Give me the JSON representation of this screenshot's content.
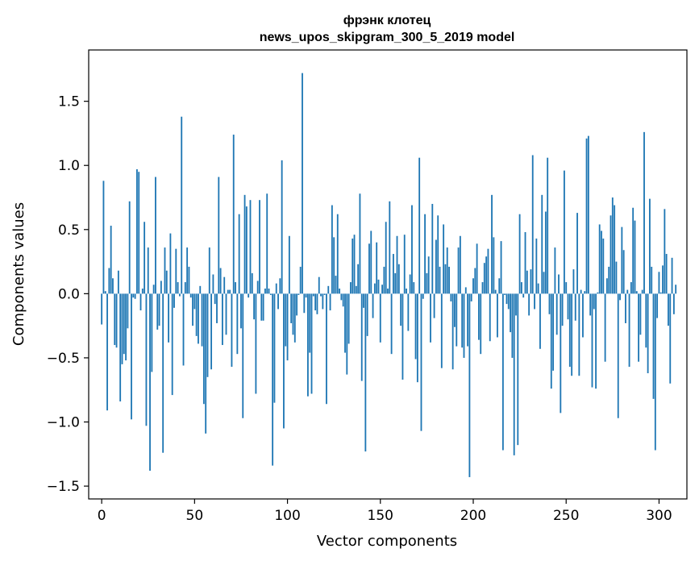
{
  "chart_data": {
    "type": "bar",
    "title_line1": "фрэнк клотец",
    "title_line2": "news_upos_skipgram_300_5_2019 model",
    "xlabel": "Vector components",
    "ylabel": "Components values",
    "xlim": [
      -7,
      315
    ],
    "ylim": [
      -1.6,
      1.9
    ],
    "x_ticks": [
      0,
      50,
      100,
      150,
      200,
      250,
      300
    ],
    "y_ticks": [
      -1.5,
      -1.0,
      -0.5,
      0.0,
      0.5,
      1.0,
      1.5
    ],
    "x_tick_labels": [
      "0",
      "50",
      "100",
      "150",
      "200",
      "250",
      "300"
    ],
    "y_tick_labels": [
      "−1.5",
      "−1.0",
      "−0.5",
      "0.0",
      "0.5",
      "1.0",
      "1.5"
    ],
    "bar_color": "#1f77b4",
    "grid": false,
    "values": [
      -0.24,
      0.88,
      0.02,
      -0.91,
      0.2,
      0.53,
      0.12,
      -0.4,
      -0.42,
      0.18,
      -0.84,
      -0.55,
      -0.47,
      -0.52,
      -0.27,
      0.72,
      -0.98,
      -0.03,
      -0.04,
      0.97,
      0.95,
      -0.13,
      0.04,
      0.56,
      -1.03,
      0.36,
      -1.38,
      -0.61,
      0.07,
      0.91,
      -0.28,
      -0.25,
      0.1,
      -1.24,
      0.36,
      0.18,
      -0.38,
      0.47,
      -0.79,
      -0.11,
      0.35,
      0.09,
      -0.02,
      1.38,
      -0.56,
      0.09,
      0.36,
      0.21,
      -0.03,
      -0.25,
      -0.12,
      -0.33,
      -0.39,
      0.06,
      -0.41,
      -0.86,
      -1.09,
      -0.65,
      0.36,
      -0.59,
      0.15,
      -0.08,
      -0.23,
      0.91,
      0.2,
      -0.4,
      0.13,
      -0.32,
      0.03,
      0.03,
      -0.57,
      1.24,
      0.09,
      -0.47,
      0.62,
      -0.27,
      -0.97,
      0.77,
      0.68,
      -0.03,
      0.73,
      0.16,
      -0.2,
      -0.78,
      0.1,
      0.73,
      -0.21,
      -0.21,
      0.04,
      0.78,
      0.04,
      -0.01,
      -1.34,
      -0.85,
      0.08,
      -0.12,
      0.12,
      1.04,
      -1.05,
      -0.41,
      -0.52,
      0.45,
      -0.23,
      -0.32,
      -0.38,
      -0.17,
      -0.01,
      0.21,
      1.72,
      -0.15,
      -0.03,
      -0.8,
      -0.46,
      -0.78,
      -0.02,
      -0.13,
      -0.16,
      0.13,
      -0.02,
      -0.12,
      -0.01,
      -0.86,
      0.06,
      -0.13,
      0.69,
      0.44,
      0.14,
      0.62,
      0.04,
      -0.05,
      -0.1,
      -0.46,
      -0.63,
      -0.39,
      0.09,
      0.43,
      0.46,
      0.06,
      0.23,
      0.78,
      -0.68,
      -0.11,
      -1.23,
      -0.33,
      0.39,
      0.49,
      -0.19,
      0.08,
      0.4,
      0.11,
      -0.38,
      0.07,
      0.21,
      0.56,
      0.04,
      0.72,
      -0.47,
      0.31,
      0.16,
      0.45,
      0.23,
      -0.25,
      -0.67,
      0.46,
      0.04,
      -0.29,
      0.15,
      0.69,
      0.09,
      -0.51,
      -0.69,
      1.06,
      -1.07,
      -0.04,
      0.62,
      0.16,
      0.29,
      -0.38,
      0.7,
      -0.19,
      0.42,
      0.61,
      0.21,
      -0.58,
      0.54,
      0.23,
      0.36,
      0.21,
      -0.06,
      -0.59,
      -0.26,
      -0.41,
      0.36,
      0.45,
      -0.42,
      -0.5,
      0.05,
      -0.41,
      -1.43,
      -0.06,
      0.12,
      0.2,
      0.39,
      -0.36,
      -0.47,
      0.09,
      0.24,
      0.29,
      0.35,
      -0.37,
      0.77,
      0.44,
      0.03,
      -0.34,
      0.12,
      0.41,
      -1.22,
      -0.01,
      -0.08,
      -0.12,
      -0.3,
      -0.5,
      -1.26,
      -0.17,
      -1.18,
      0.62,
      0.09,
      -0.03,
      0.48,
      0.18,
      -0.17,
      0.19,
      1.08,
      -0.12,
      0.43,
      0.08,
      -0.43,
      0.77,
      0.17,
      0.64,
      1.06,
      -0.16,
      -0.74,
      -0.6,
      0.36,
      -0.32,
      0.15,
      -0.93,
      -0.25,
      0.96,
      0.09,
      -0.2,
      -0.57,
      -0.64,
      0.19,
      -0.21,
      0.63,
      -0.64,
      0.03,
      -0.34,
      0.02,
      1.21,
      1.23,
      -0.17,
      -0.73,
      -0.12,
      -0.74,
      0.01,
      0.54,
      0.49,
      0.43,
      -0.53,
      0.12,
      0.21,
      0.61,
      0.75,
      0.69,
      0.25,
      -0.97,
      -0.05,
      0.52,
      0.34,
      -0.23,
      0.03,
      -0.57,
      0.09,
      0.67,
      0.57,
      0.02,
      -0.53,
      -0.32,
      0.03,
      1.26,
      -0.42,
      -0.62,
      0.74,
      0.21,
      -0.82,
      -1.22,
      -0.19,
      0.17,
      0.01,
      0.22,
      0.66,
      0.31,
      -0.25,
      -0.7,
      0.28,
      -0.16,
      0.07
    ]
  }
}
